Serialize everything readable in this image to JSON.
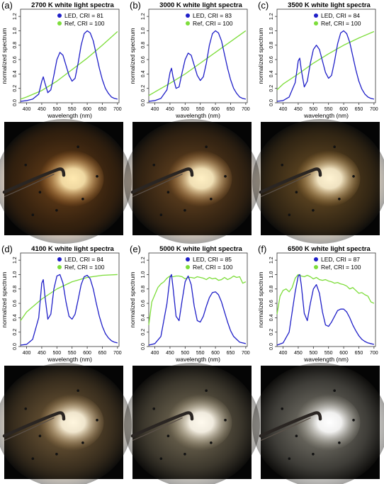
{
  "chart_data": [
    {
      "type": "line",
      "panel_label": "(a)",
      "title": "2700 K white light spectra",
      "xlabel": "wavelength (nm)",
      "ylabel": "normalized spectrum",
      "xlim": [
        380,
        705
      ],
      "ylim": [
        0,
        1.3
      ],
      "xticks": [
        "400",
        "450",
        "500",
        "550",
        "600",
        "650",
        "700"
      ],
      "yticks": [
        "0.0",
        "0.2",
        "0.4",
        "0.6",
        "0.8",
        "1.0",
        "1.2"
      ],
      "legend_position": "top-right",
      "series": [
        {
          "name": "LED, CRI = 81",
          "color": "#1f1fc8",
          "x": [
            380,
            400,
            420,
            440,
            450,
            455,
            460,
            470,
            480,
            490,
            500,
            510,
            520,
            530,
            540,
            550,
            560,
            570,
            580,
            590,
            600,
            610,
            620,
            630,
            640,
            650,
            660,
            670,
            680,
            690,
            700
          ],
          "y": [
            0.02,
            0.03,
            0.05,
            0.12,
            0.3,
            0.36,
            0.28,
            0.14,
            0.18,
            0.38,
            0.6,
            0.7,
            0.66,
            0.52,
            0.38,
            0.3,
            0.34,
            0.55,
            0.8,
            0.96,
            1.0,
            0.97,
            0.86,
            0.67,
            0.48,
            0.32,
            0.2,
            0.13,
            0.08,
            0.06,
            0.05
          ]
        },
        {
          "name": "Ref, CRI = 100",
          "color": "#7ddd3a",
          "x": [
            380,
            400,
            450,
            500,
            550,
            600,
            650,
            700
          ],
          "y": [
            0.05,
            0.08,
            0.17,
            0.3,
            0.46,
            0.62,
            0.8,
            0.99
          ]
        }
      ]
    },
    {
      "type": "line",
      "panel_label": "(b)",
      "title": "3000 K white light spectra",
      "xlabel": "wavelength (nm)",
      "ylabel": "normalized spectrum",
      "xlim": [
        380,
        705
      ],
      "ylim": [
        0,
        1.3
      ],
      "xticks": [
        "400",
        "450",
        "500",
        "550",
        "600",
        "650",
        "700"
      ],
      "yticks": [
        "0.0",
        "0.2",
        "0.4",
        "0.6",
        "0.8",
        "1.0",
        "1.2"
      ],
      "legend_position": "top-right",
      "series": [
        {
          "name": "LED, CRI = 83",
          "color": "#1f1fc8",
          "x": [
            380,
            400,
            420,
            440,
            450,
            455,
            460,
            470,
            480,
            490,
            500,
            510,
            520,
            530,
            540,
            550,
            560,
            570,
            580,
            590,
            600,
            610,
            620,
            630,
            640,
            650,
            660,
            670,
            680,
            690,
            700
          ],
          "y": [
            0.02,
            0.03,
            0.06,
            0.18,
            0.42,
            0.48,
            0.36,
            0.2,
            0.22,
            0.42,
            0.6,
            0.69,
            0.66,
            0.52,
            0.38,
            0.31,
            0.36,
            0.55,
            0.8,
            0.96,
            1.0,
            0.97,
            0.86,
            0.67,
            0.48,
            0.32,
            0.2,
            0.13,
            0.08,
            0.06,
            0.05
          ]
        },
        {
          "name": "Ref, CRI = 100",
          "color": "#7ddd3a",
          "x": [
            380,
            400,
            450,
            500,
            550,
            600,
            650,
            700
          ],
          "y": [
            0.1,
            0.15,
            0.27,
            0.4,
            0.55,
            0.7,
            0.85,
            1.0
          ]
        }
      ]
    },
    {
      "type": "line",
      "panel_label": "(c)",
      "title": "3500 K white light spectra",
      "xlabel": "wavelength (nm)",
      "ylabel": "normalized spectrum",
      "xlim": [
        380,
        705
      ],
      "ylim": [
        0,
        1.3
      ],
      "xticks": [
        "400",
        "450",
        "500",
        "550",
        "600",
        "650",
        "700"
      ],
      "yticks": [
        "0.0",
        "0.2",
        "0.4",
        "0.6",
        "0.8",
        "1.0",
        "1.2"
      ],
      "legend_position": "top-right",
      "series": [
        {
          "name": "LED, CRI = 84",
          "color": "#1f1fc8",
          "x": [
            380,
            400,
            420,
            440,
            450,
            455,
            460,
            470,
            480,
            490,
            500,
            510,
            520,
            530,
            540,
            550,
            560,
            570,
            580,
            590,
            600,
            610,
            620,
            630,
            640,
            650,
            660,
            670,
            680,
            690,
            700
          ],
          "y": [
            0.02,
            0.03,
            0.08,
            0.28,
            0.58,
            0.62,
            0.46,
            0.22,
            0.3,
            0.55,
            0.74,
            0.8,
            0.74,
            0.58,
            0.42,
            0.34,
            0.38,
            0.58,
            0.82,
            0.97,
            1.0,
            0.96,
            0.84,
            0.65,
            0.46,
            0.3,
            0.19,
            0.12,
            0.08,
            0.06,
            0.05
          ]
        },
        {
          "name": "Ref, CRI = 100",
          "color": "#7ddd3a",
          "x": [
            380,
            400,
            450,
            500,
            550,
            600,
            650,
            700
          ],
          "y": [
            0.18,
            0.26,
            0.4,
            0.55,
            0.68,
            0.8,
            0.9,
            0.99
          ]
        }
      ]
    },
    {
      "type": "line",
      "panel_label": "(d)",
      "title": "4100 K white light spectra",
      "xlabel": "wavelength (nm)",
      "ylabel": "normalized spectrum",
      "xlim": [
        380,
        705
      ],
      "ylim": [
        0,
        1.3
      ],
      "xticks": [
        "400",
        "450",
        "500",
        "550",
        "600",
        "650",
        "700"
      ],
      "yticks": [
        "0.0",
        "0.2",
        "0.4",
        "0.6",
        "0.8",
        "1.0",
        "1.2"
      ],
      "legend_position": "top-right",
      "series": [
        {
          "name": "LED, CRI = 84",
          "color": "#1f1fc8",
          "x": [
            380,
            400,
            420,
            440,
            450,
            455,
            460,
            470,
            480,
            490,
            500,
            510,
            520,
            530,
            540,
            550,
            560,
            570,
            580,
            590,
            600,
            610,
            620,
            630,
            640,
            650,
            660,
            670,
            680,
            690,
            700
          ],
          "y": [
            0.02,
            0.03,
            0.1,
            0.4,
            0.88,
            0.93,
            0.72,
            0.38,
            0.45,
            0.8,
            0.98,
            1.0,
            0.88,
            0.62,
            0.42,
            0.38,
            0.45,
            0.65,
            0.86,
            0.97,
            0.99,
            0.94,
            0.8,
            0.6,
            0.42,
            0.28,
            0.18,
            0.12,
            0.08,
            0.06,
            0.05
          ]
        },
        {
          "name": "Ref, CRI = 100",
          "color": "#7ddd3a",
          "x": [
            380,
            400,
            450,
            500,
            550,
            600,
            650,
            700
          ],
          "y": [
            0.36,
            0.48,
            0.66,
            0.8,
            0.9,
            0.96,
            0.99,
            1.0
          ]
        }
      ]
    },
    {
      "type": "line",
      "panel_label": "(e)",
      "title": "5000 K white light spectra",
      "xlabel": "wavelength (nm)",
      "ylabel": "normalized spectrum",
      "xlim": [
        380,
        705
      ],
      "ylim": [
        0,
        1.3
      ],
      "xticks": [
        "400",
        "450",
        "500",
        "550",
        "600",
        "650",
        "700"
      ],
      "yticks": [
        "0.0",
        "0.2",
        "0.4",
        "0.6",
        "0.8",
        "1.0",
        "1.2"
      ],
      "legend_position": "top-right",
      "series": [
        {
          "name": "LED, CRI = 85",
          "color": "#1f1fc8",
          "x": [
            380,
            400,
            420,
            440,
            450,
            455,
            460,
            470,
            480,
            490,
            500,
            510,
            520,
            530,
            540,
            550,
            560,
            570,
            580,
            590,
            600,
            610,
            620,
            630,
            640,
            650,
            660,
            670,
            680,
            690,
            700
          ],
          "y": [
            0.02,
            0.04,
            0.14,
            0.6,
            0.96,
            1.0,
            0.82,
            0.42,
            0.36,
            0.64,
            0.9,
            0.98,
            0.86,
            0.56,
            0.36,
            0.34,
            0.42,
            0.56,
            0.68,
            0.75,
            0.76,
            0.72,
            0.62,
            0.48,
            0.34,
            0.22,
            0.14,
            0.1,
            0.06,
            0.05,
            0.04
          ]
        },
        {
          "name": "Ref, CRI = 100",
          "color": "#7ddd3a",
          "x": [
            380,
            390,
            400,
            410,
            420,
            430,
            440,
            450,
            460,
            470,
            480,
            490,
            500,
            510,
            520,
            530,
            540,
            550,
            560,
            570,
            580,
            590,
            600,
            610,
            620,
            630,
            640,
            650,
            660,
            670,
            680,
            690,
            700
          ],
          "y": [
            0.3,
            0.62,
            0.72,
            0.82,
            0.87,
            0.9,
            0.95,
            0.98,
            0.97,
            0.98,
            0.98,
            0.97,
            0.94,
            0.96,
            0.96,
            0.95,
            0.97,
            0.96,
            0.95,
            0.93,
            0.96,
            0.94,
            0.95,
            0.92,
            0.93,
            0.96,
            0.93,
            0.95,
            0.98,
            0.96,
            0.97,
            0.88,
            0.9
          ]
        }
      ]
    },
    {
      "type": "line",
      "panel_label": "(f)",
      "title": "6500 K white light spectra",
      "xlabel": "wavelength (nm)",
      "ylabel": "normalized spectrum",
      "xlim": [
        380,
        705
      ],
      "ylim": [
        0,
        1.3
      ],
      "xticks": [
        "400",
        "450",
        "500",
        "550",
        "600",
        "650",
        "700"
      ],
      "yticks": [
        "0.0",
        "0.2",
        "0.4",
        "0.6",
        "0.8",
        "1.0",
        "1.2"
      ],
      "legend_position": "top-right",
      "series": [
        {
          "name": "LED, CRI = 87",
          "color": "#1f1fc8",
          "x": [
            380,
            400,
            420,
            440,
            450,
            455,
            460,
            470,
            480,
            490,
            500,
            510,
            520,
            530,
            540,
            550,
            560,
            570,
            580,
            590,
            600,
            610,
            620,
            630,
            640,
            650,
            660,
            670,
            680,
            690,
            700
          ],
          "y": [
            0.02,
            0.05,
            0.2,
            0.76,
            0.98,
            1.0,
            0.86,
            0.46,
            0.36,
            0.6,
            0.8,
            0.86,
            0.74,
            0.48,
            0.3,
            0.28,
            0.34,
            0.42,
            0.5,
            0.52,
            0.52,
            0.48,
            0.4,
            0.3,
            0.22,
            0.15,
            0.1,
            0.07,
            0.05,
            0.04,
            0.03
          ]
        },
        {
          "name": "Ref, CRI = 100",
          "color": "#7ddd3a",
          "x": [
            380,
            390,
            400,
            410,
            420,
            430,
            440,
            450,
            460,
            470,
            480,
            490,
            500,
            510,
            520,
            530,
            540,
            550,
            560,
            570,
            580,
            590,
            600,
            610,
            620,
            630,
            640,
            650,
            660,
            670,
            680,
            690,
            700
          ],
          "y": [
            0.45,
            0.7,
            0.78,
            0.8,
            0.76,
            0.82,
            0.95,
            1.0,
            0.98,
            0.97,
            0.99,
            0.97,
            0.94,
            0.96,
            0.93,
            0.92,
            0.93,
            0.91,
            0.9,
            0.88,
            0.89,
            0.87,
            0.86,
            0.84,
            0.8,
            0.82,
            0.78,
            0.74,
            0.75,
            0.72,
            0.7,
            0.62,
            0.6
          ]
        }
      ]
    }
  ],
  "photos": [
    {
      "name": "photo-2700k",
      "glow_color": "#ffe9b0",
      "halo_color": "#c8782c",
      "brightness": 0.55
    },
    {
      "name": "photo-3000k",
      "glow_color": "#fff0c4",
      "halo_color": "#b97a38",
      "brightness": 0.6
    },
    {
      "name": "photo-3500k",
      "glow_color": "#fff3d2",
      "halo_color": "#b6853e",
      "brightness": 0.62
    },
    {
      "name": "photo-4100k",
      "glow_color": "#fff6de",
      "halo_color": "#b48e58",
      "brightness": 0.68
    },
    {
      "name": "photo-5000k",
      "glow_color": "#fffaee",
      "halo_color": "#a89a7a",
      "brightness": 0.76
    },
    {
      "name": "photo-6500k",
      "glow_color": "#ffffff",
      "halo_color": "#a6a294",
      "brightness": 0.8
    }
  ]
}
